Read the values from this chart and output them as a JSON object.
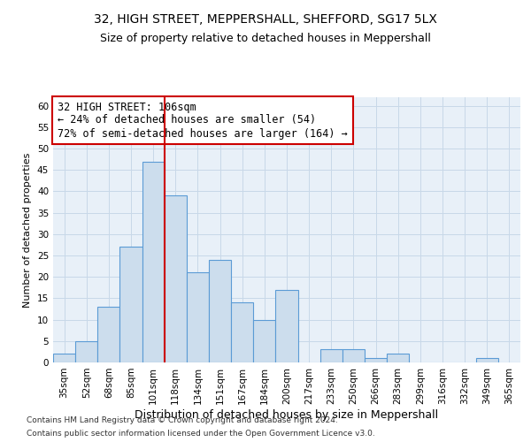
{
  "title1": "32, HIGH STREET, MEPPERSHALL, SHEFFORD, SG17 5LX",
  "title2": "Size of property relative to detached houses in Meppershall",
  "xlabel": "Distribution of detached houses by size in Meppershall",
  "ylabel": "Number of detached properties",
  "bar_labels": [
    "35sqm",
    "52sqm",
    "68sqm",
    "85sqm",
    "101sqm",
    "118sqm",
    "134sqm",
    "151sqm",
    "167sqm",
    "184sqm",
    "200sqm",
    "217sqm",
    "233sqm",
    "250sqm",
    "266sqm",
    "283sqm",
    "299sqm",
    "316sqm",
    "332sqm",
    "349sqm",
    "365sqm"
  ],
  "bar_values": [
    2,
    5,
    13,
    27,
    47,
    39,
    21,
    24,
    14,
    10,
    17,
    0,
    3,
    3,
    1,
    2,
    0,
    0,
    0,
    1,
    0
  ],
  "bar_color": "#ccdded",
  "bar_edge_color": "#5b9bd5",
  "vline_color": "#cc0000",
  "annotation_text": "32 HIGH STREET: 106sqm\n← 24% of detached houses are smaller (54)\n72% of semi-detached houses are larger (164) →",
  "annotation_box_color": "#ffffff",
  "annotation_box_edge": "#cc0000",
  "annotation_fontsize": 8.5,
  "ylim": [
    0,
    62
  ],
  "yticks": [
    0,
    5,
    10,
    15,
    20,
    25,
    30,
    35,
    40,
    45,
    50,
    55,
    60
  ],
  "grid_color": "#c8d8e8",
  "bg_color": "#e8f0f8",
  "footnote1": "Contains HM Land Registry data © Crown copyright and database right 2024.",
  "footnote2": "Contains public sector information licensed under the Open Government Licence v3.0.",
  "title1_fontsize": 10,
  "title2_fontsize": 9,
  "xlabel_fontsize": 9,
  "ylabel_fontsize": 8,
  "tick_fontsize": 7.5
}
